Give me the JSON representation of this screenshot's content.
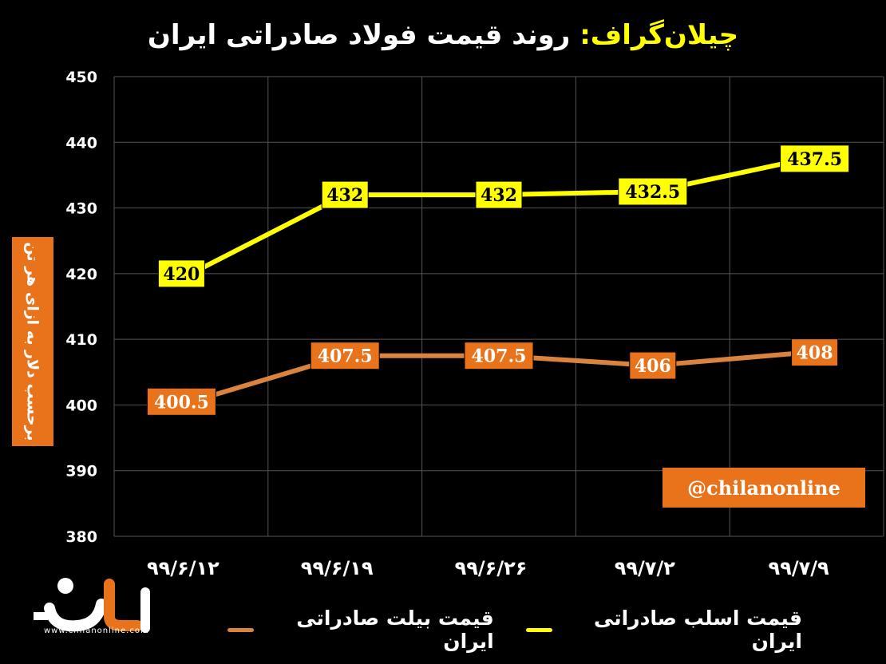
{
  "title": {
    "brand": "چیلان‌گراف:",
    "main": "روند قیمت فولاد صادراتی ایران"
  },
  "handle": "@chilanonline",
  "logo": {
    "site": "www.chilanonline.com",
    "name": "چیلان"
  },
  "colors": {
    "series1": "#ffff00",
    "series2": "#d9833e",
    "accent": "#e8731a",
    "grid": "#555555"
  },
  "chart_data": {
    "type": "line",
    "ylabel": "برحسب دلار به ازای هر تن",
    "ylim": [
      380,
      450
    ],
    "yticks": [
      450,
      440,
      430,
      420,
      410,
      400,
      390,
      380
    ],
    "categories": [
      "۹۹/۶/۱۲",
      "۹۹/۶/۱۹",
      "۹۹/۶/۲۶",
      "۹۹/۷/۲",
      "۹۹/۷/۹"
    ],
    "grid": true,
    "legend_position": "bottom",
    "series": [
      {
        "name": "قیمت اسلب صادراتی ایران",
        "color": "#ffff00",
        "values": [
          420,
          432,
          432,
          432.5,
          437.5
        ],
        "labels": [
          "420",
          "432",
          "432",
          "432.5",
          "437.5"
        ]
      },
      {
        "name": "قیمت بیلت صادراتی ایران",
        "color": "#d9833e",
        "values": [
          400.5,
          407.5,
          407.5,
          406,
          408
        ],
        "labels": [
          "400.5",
          "407.5",
          "407.5",
          "406",
          "408"
        ]
      }
    ]
  }
}
